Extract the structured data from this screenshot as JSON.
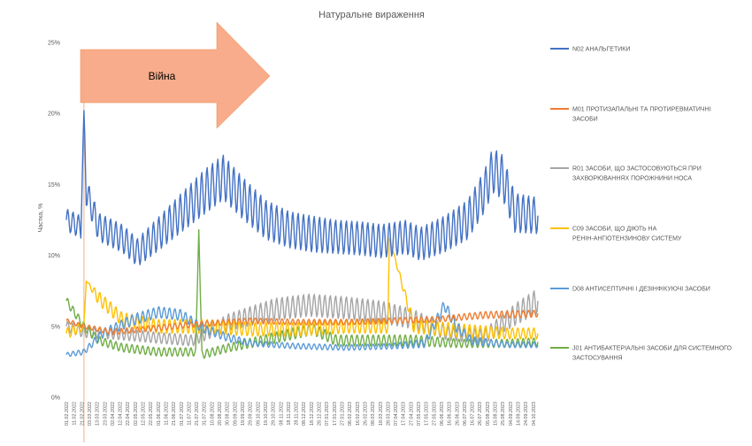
{
  "chart_data": {
    "type": "line",
    "title": "Натуральне вираження",
    "ylabel": "Частка, %",
    "ylim": [
      0,
      25
    ],
    "y_ticks": [
      "0%",
      "5%",
      "10%",
      "15%",
      "20%",
      "25%"
    ],
    "grid": false,
    "legend_position": "right",
    "x_date_range": [
      "2022-02-01",
      "2023-10-10"
    ],
    "x_tick_labels": [
      "01.02.2022",
      "11.02.2022",
      "21.02.2022",
      "03.03.2022",
      "13.03.2022",
      "23.03.2022",
      "02.04.2022",
      "12.04.2022",
      "22.04.2022",
      "02.05.2022",
      "12.05.2022",
      "22.05.2022",
      "01.06.2022",
      "11.06.2022",
      "21.06.2022",
      "01.07.2022",
      "11.07.2022",
      "21.07.2022",
      "31.07.2022",
      "10.08.2022",
      "20.08.2022",
      "30.08.2022",
      "09.09.2022",
      "19.09.2022",
      "29.09.2022",
      "09.10.2022",
      "19.10.2022",
      "29.10.2022",
      "08.11.2022",
      "18.11.2022",
      "28.11.2022",
      "08.12.2022",
      "18.12.2022",
      "28.12.2022",
      "07.01.2023",
      "17.01.2023",
      "27.01.2023",
      "06.02.2023",
      "16.02.2023",
      "26.02.2023",
      "08.03.2023",
      "18.03.2023",
      "28.03.2023",
      "07.04.2023",
      "17.04.2023",
      "27.04.2023",
      "07.05.2023",
      "17.05.2023",
      "27.05.2023",
      "06.06.2023",
      "16.06.2023",
      "26.06.2023",
      "06.07.2023",
      "16.07.2023",
      "26.07.2023",
      "05.08.2023",
      "15.08.2023",
      "25.08.2023",
      "04.09.2023",
      "14.09.2023",
      "24.09.2023",
      "04.10.2023"
    ],
    "annotation": {
      "text": "Війна",
      "event_date": "2022-02-24"
    },
    "series": [
      {
        "name": "N02 АНАЛЬГЕТИКИ",
        "color": "#4472C4",
        "x": [
          "2022-02-01",
          "2022-02-20",
          "2022-02-24",
          "2022-02-27",
          "2022-03-15",
          "2022-04-15",
          "2022-05-05",
          "2022-06-01",
          "2022-07-01",
          "2022-08-01",
          "2022-08-25",
          "2022-09-20",
          "2022-10-20",
          "2022-11-20",
          "2022-12-20",
          "2023-01-20",
          "2023-02-20",
          "2023-03-20",
          "2023-04-20",
          "2023-05-10",
          "2023-06-10",
          "2023-07-10",
          "2023-08-01",
          "2023-08-12",
          "2023-08-25",
          "2023-09-10",
          "2023-10-10"
        ],
        "values": [
          12.5,
          12.0,
          20.2,
          14.5,
          12.0,
          11.2,
          10.2,
          11.5,
          13.0,
          14.5,
          15.5,
          14.0,
          12.5,
          11.8,
          11.5,
          11.3,
          11.2,
          11.0,
          11.3,
          10.8,
          11.5,
          12.5,
          14.5,
          16.0,
          15.5,
          13.0,
          12.8
        ],
        "amplitude": [
          0.8,
          0.8,
          0,
          1.0,
          1.0,
          1.0,
          1.0,
          1.2,
          1.4,
          1.6,
          1.6,
          1.5,
          1.4,
          1.3,
          1.3,
          1.2,
          1.2,
          1.2,
          1.2,
          1.2,
          1.3,
          1.4,
          1.5,
          1.6,
          1.6,
          1.4,
          1.3
        ]
      },
      {
        "name": "M01 ПРОТИЗАПАЛЬНІ ТА ПРОТИРЕВМАТИЧНІ ЗАСОБИ",
        "color": "#ED7D31",
        "x": [
          "2022-02-01",
          "2022-02-24",
          "2022-04-01",
          "2022-06-01",
          "2022-08-01",
          "2022-10-01",
          "2022-12-01",
          "2023-02-01",
          "2023-04-01",
          "2023-06-01",
          "2023-08-01",
          "2023-10-10"
        ],
        "values": [
          5.4,
          5.0,
          4.6,
          4.9,
          5.2,
          5.4,
          5.3,
          5.3,
          5.4,
          5.5,
          5.8,
          5.9
        ],
        "amplitude": [
          0.15,
          0.15,
          0.2,
          0.2,
          0.2,
          0.2,
          0.2,
          0.2,
          0.2,
          0.2,
          0.25,
          0.25
        ]
      },
      {
        "name": "R01 ЗАСОБИ, ЩО ЗАСТОСОВУЮТЬСЯ ПРИ ЗАХВОРЮВАННЯХ ПОРОЖНИНИ НОСА",
        "color": "#A5A5A5",
        "x": [
          "2022-02-01",
          "2022-02-24",
          "2022-04-01",
          "2022-06-01",
          "2022-07-15",
          "2022-09-01",
          "2022-11-01",
          "2022-12-15",
          "2023-02-01",
          "2023-03-20",
          "2023-05-01",
          "2023-06-15",
          "2023-08-01",
          "2023-09-15",
          "2023-10-10"
        ],
        "values": [
          5.0,
          4.6,
          4.5,
          4.2,
          4.0,
          5.3,
          6.2,
          6.5,
          6.3,
          6.0,
          5.5,
          4.5,
          4.3,
          6.0,
          6.8
        ],
        "amplitude": [
          0.4,
          0.4,
          0.4,
          0.4,
          0.4,
          0.6,
          0.8,
          0.8,
          0.8,
          0.8,
          0.7,
          0.5,
          0.5,
          0.8,
          0.9
        ]
      },
      {
        "name": "C09 ЗАСОБИ, ЩО ДІЮТЬ НА РЕНІН-АНГІОТЕНЗИНОВУ СИСТЕМУ",
        "color": "#FFC000",
        "x": [
          "2022-02-01",
          "2022-02-24",
          "2022-02-27",
          "2022-03-15",
          "2022-04-15",
          "2022-06-01",
          "2022-08-01",
          "2022-10-01",
          "2022-12-01",
          "2023-02-01",
          "2023-03-28",
          "2023-03-30",
          "2023-05-01",
          "2023-07-01",
          "2023-09-01",
          "2023-10-10"
        ],
        "values": [
          4.5,
          5.0,
          8.2,
          7.0,
          5.5,
          5.0,
          5.0,
          4.8,
          4.8,
          5.0,
          5.0,
          11.2,
          5.0,
          4.7,
          4.5,
          4.5
        ],
        "amplitude": [
          0.4,
          0.3,
          0,
          0.5,
          0.5,
          0.5,
          0.5,
          0.5,
          0.5,
          0.5,
          0.5,
          0,
          0.5,
          0.5,
          0.4,
          0.4
        ]
      },
      {
        "name": "D08 АНТИСЕПТИЧНІ І ДЕЗІНФІКУЮЧІ ЗАСОБИ",
        "color": "#5B9BD5",
        "x": [
          "2022-02-01",
          "2022-02-24",
          "2022-03-20",
          "2022-05-01",
          "2022-06-01",
          "2022-07-01",
          "2022-08-01",
          "2022-09-01",
          "2022-10-01",
          "2022-12-01",
          "2023-02-01",
          "2023-04-01",
          "2023-05-15",
          "2023-06-10",
          "2023-06-25",
          "2023-07-15",
          "2023-09-01",
          "2023-10-10"
        ],
        "values": [
          3.0,
          3.2,
          4.5,
          5.5,
          6.0,
          5.8,
          4.8,
          4.2,
          3.8,
          3.6,
          3.5,
          3.6,
          3.8,
          6.5,
          5.0,
          4.0,
          3.7,
          3.7
        ],
        "amplitude": [
          0.15,
          0.2,
          0.3,
          0.4,
          0.4,
          0.4,
          0.3,
          0.3,
          0.2,
          0.2,
          0.2,
          0.2,
          0.3,
          0.4,
          0.4,
          0.3,
          0.2,
          0.2
        ]
      },
      {
        "name": "J01 АНТИБАКТЕРІАЛЬНІ ЗАСОБИ ДЛЯ СИСТЕМНОГО ЗАСТОСУВАННЯ",
        "color": "#70AD47",
        "x": [
          "2022-02-01",
          "2022-02-24",
          "2022-03-15",
          "2022-04-15",
          "2022-06-01",
          "2022-07-20",
          "2022-07-24",
          "2022-07-28",
          "2022-09-01",
          "2022-11-01",
          "2022-12-20",
          "2023-01-20",
          "2023-03-01",
          "2023-05-01",
          "2023-07-01",
          "2023-09-01",
          "2023-10-10"
        ],
        "values": [
          6.8,
          5.0,
          4.0,
          3.5,
          3.2,
          3.2,
          11.8,
          3.0,
          3.5,
          4.2,
          4.8,
          4.0,
          4.0,
          4.0,
          3.8,
          3.8,
          3.9
        ],
        "amplitude": [
          0.3,
          0.3,
          0.3,
          0.3,
          0.3,
          0.3,
          0,
          0.3,
          0.3,
          0.4,
          0.4,
          0.4,
          0.4,
          0.4,
          0.3,
          0.3,
          0.3
        ]
      }
    ]
  }
}
